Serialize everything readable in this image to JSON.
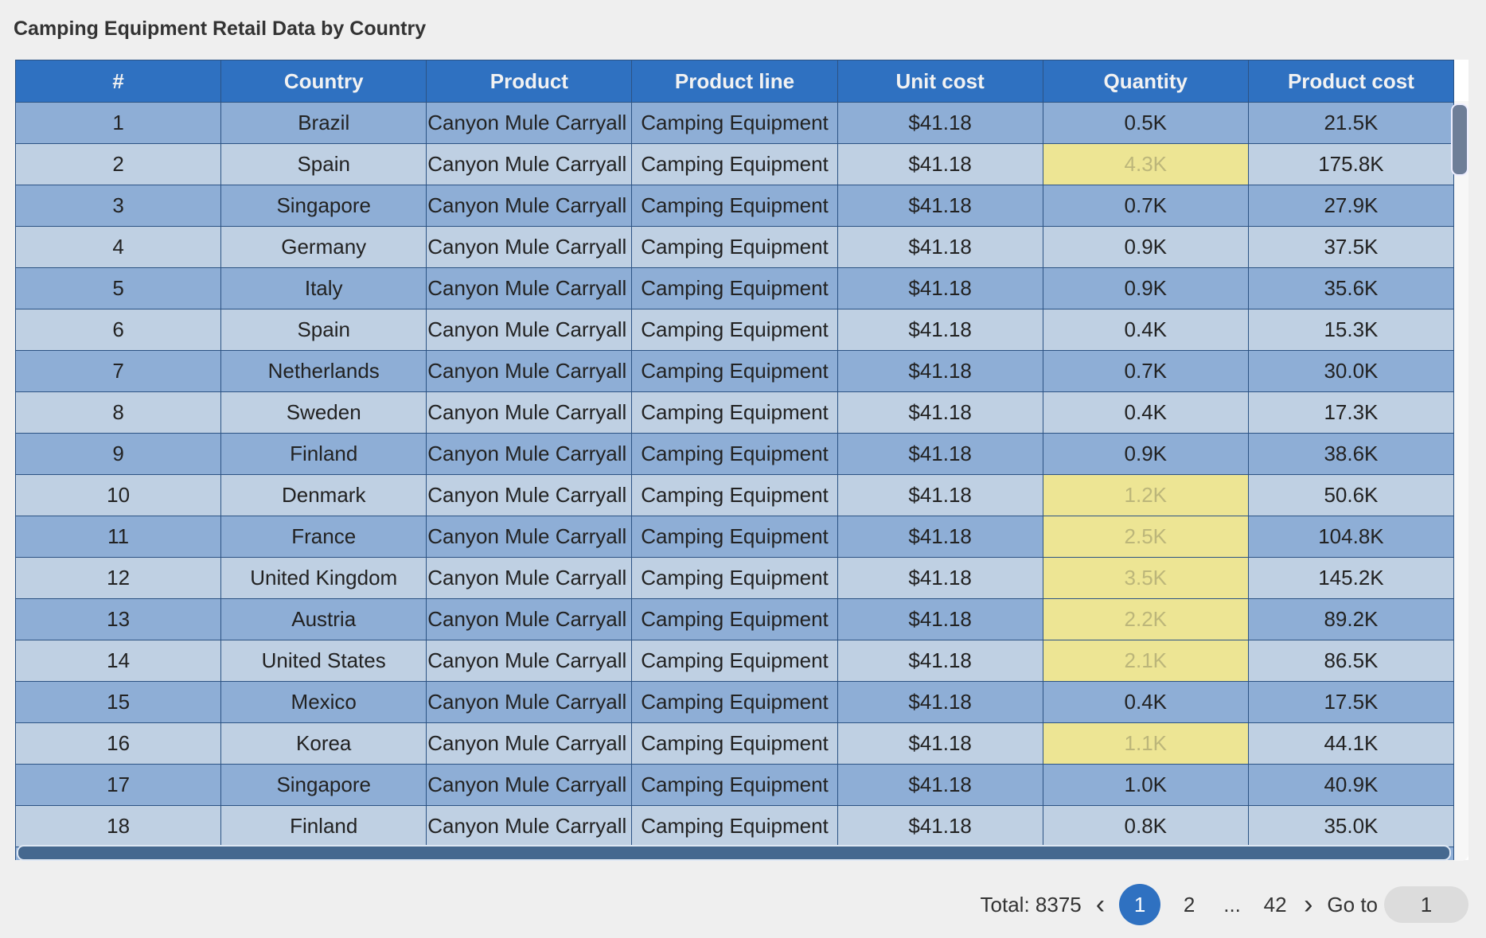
{
  "title": "Camping Equipment Retail Data by Country",
  "colors": {
    "header": "#2f71c1",
    "row_odd": "#8eaed6",
    "row_even": "#bfd0e3",
    "highlight": "#ede594"
  },
  "columns": [
    "#",
    "Country",
    "Product",
    "Product line",
    "Unit cost",
    "Quantity",
    "Product cost"
  ],
  "rows": [
    {
      "n": "1",
      "country": "Brazil",
      "product": "Canyon Mule Carryall",
      "line": "Camping Equipment",
      "unit": "$41.18",
      "qty": "0.5K",
      "cost": "21.5K",
      "hl": false
    },
    {
      "n": "2",
      "country": "Spain",
      "product": "Canyon Mule Carryall",
      "line": "Camping Equipment",
      "unit": "$41.18",
      "qty": "4.3K",
      "cost": "175.8K",
      "hl": true
    },
    {
      "n": "3",
      "country": "Singapore",
      "product": "Canyon Mule Carryall",
      "line": "Camping Equipment",
      "unit": "$41.18",
      "qty": "0.7K",
      "cost": "27.9K",
      "hl": false
    },
    {
      "n": "4",
      "country": "Germany",
      "product": "Canyon Mule Carryall",
      "line": "Camping Equipment",
      "unit": "$41.18",
      "qty": "0.9K",
      "cost": "37.5K",
      "hl": false
    },
    {
      "n": "5",
      "country": "Italy",
      "product": "Canyon Mule Carryall",
      "line": "Camping Equipment",
      "unit": "$41.18",
      "qty": "0.9K",
      "cost": "35.6K",
      "hl": false
    },
    {
      "n": "6",
      "country": "Spain",
      "product": "Canyon Mule Carryall",
      "line": "Camping Equipment",
      "unit": "$41.18",
      "qty": "0.4K",
      "cost": "15.3K",
      "hl": false
    },
    {
      "n": "7",
      "country": "Netherlands",
      "product": "Canyon Mule Carryall",
      "line": "Camping Equipment",
      "unit": "$41.18",
      "qty": "0.7K",
      "cost": "30.0K",
      "hl": false
    },
    {
      "n": "8",
      "country": "Sweden",
      "product": "Canyon Mule Carryall",
      "line": "Camping Equipment",
      "unit": "$41.18",
      "qty": "0.4K",
      "cost": "17.3K",
      "hl": false
    },
    {
      "n": "9",
      "country": "Finland",
      "product": "Canyon Mule Carryall",
      "line": "Camping Equipment",
      "unit": "$41.18",
      "qty": "0.9K",
      "cost": "38.6K",
      "hl": false
    },
    {
      "n": "10",
      "country": "Denmark",
      "product": "Canyon Mule Carryall",
      "line": "Camping Equipment",
      "unit": "$41.18",
      "qty": "1.2K",
      "cost": "50.6K",
      "hl": true
    },
    {
      "n": "11",
      "country": "France",
      "product": "Canyon Mule Carryall",
      "line": "Camping Equipment",
      "unit": "$41.18",
      "qty": "2.5K",
      "cost": "104.8K",
      "hl": true
    },
    {
      "n": "12",
      "country": "United Kingdom",
      "product": "Canyon Mule Carryall",
      "line": "Camping Equipment",
      "unit": "$41.18",
      "qty": "3.5K",
      "cost": "145.2K",
      "hl": true
    },
    {
      "n": "13",
      "country": "Austria",
      "product": "Canyon Mule Carryall",
      "line": "Camping Equipment",
      "unit": "$41.18",
      "qty": "2.2K",
      "cost": "89.2K",
      "hl": true
    },
    {
      "n": "14",
      "country": "United States",
      "product": "Canyon Mule Carryall",
      "line": "Camping Equipment",
      "unit": "$41.18",
      "qty": "2.1K",
      "cost": "86.5K",
      "hl": true
    },
    {
      "n": "15",
      "country": "Mexico",
      "product": "Canyon Mule Carryall",
      "line": "Camping Equipment",
      "unit": "$41.18",
      "qty": "0.4K",
      "cost": "17.5K",
      "hl": false
    },
    {
      "n": "16",
      "country": "Korea",
      "product": "Canyon Mule Carryall",
      "line": "Camping Equipment",
      "unit": "$41.18",
      "qty": "1.1K",
      "cost": "44.1K",
      "hl": true
    },
    {
      "n": "17",
      "country": "Singapore",
      "product": "Canyon Mule Carryall",
      "line": "Camping Equipment",
      "unit": "$41.18",
      "qty": "1.0K",
      "cost": "40.9K",
      "hl": false
    },
    {
      "n": "18",
      "country": "Finland",
      "product": "Canyon Mule Carryall",
      "line": "Camping Equipment",
      "unit": "$41.18",
      "qty": "0.8K",
      "cost": "35.0K",
      "hl": false
    }
  ],
  "pagination": {
    "total": "Total: 8375",
    "prev": "‹",
    "pages": [
      "1",
      "2",
      "...",
      "42"
    ],
    "current": "1",
    "next": "›",
    "goto_label": "Go to",
    "goto_value": "1"
  }
}
